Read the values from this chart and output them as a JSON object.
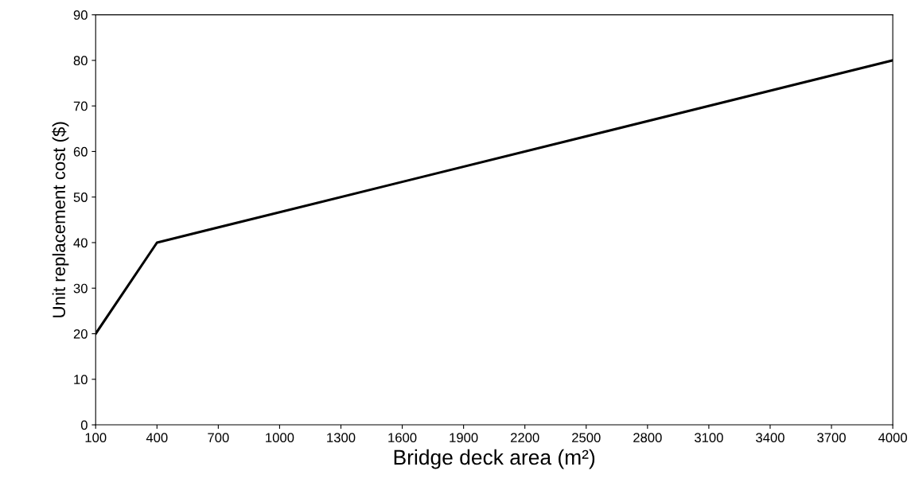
{
  "chart_data": {
    "type": "line",
    "xlabel": "Bridge deck area (m²)",
    "ylabel": "Unit replacement cost ($)",
    "x": [
      100,
      400,
      4000
    ],
    "series": [
      {
        "color": "#000000",
        "values": [
          20,
          40,
          80
        ]
      }
    ],
    "xlim": [
      100,
      4000
    ],
    "xticks": [
      100,
      400,
      700,
      1000,
      1300,
      1600,
      1900,
      2200,
      2500,
      2800,
      3100,
      3400,
      3700,
      4000
    ],
    "ylim": [
      0,
      90
    ],
    "yticks": [
      0,
      10,
      20,
      30,
      40,
      50,
      60,
      70,
      80,
      90
    ],
    "grid": false,
    "legend": false,
    "marker": "none",
    "line_style": "solid"
  }
}
